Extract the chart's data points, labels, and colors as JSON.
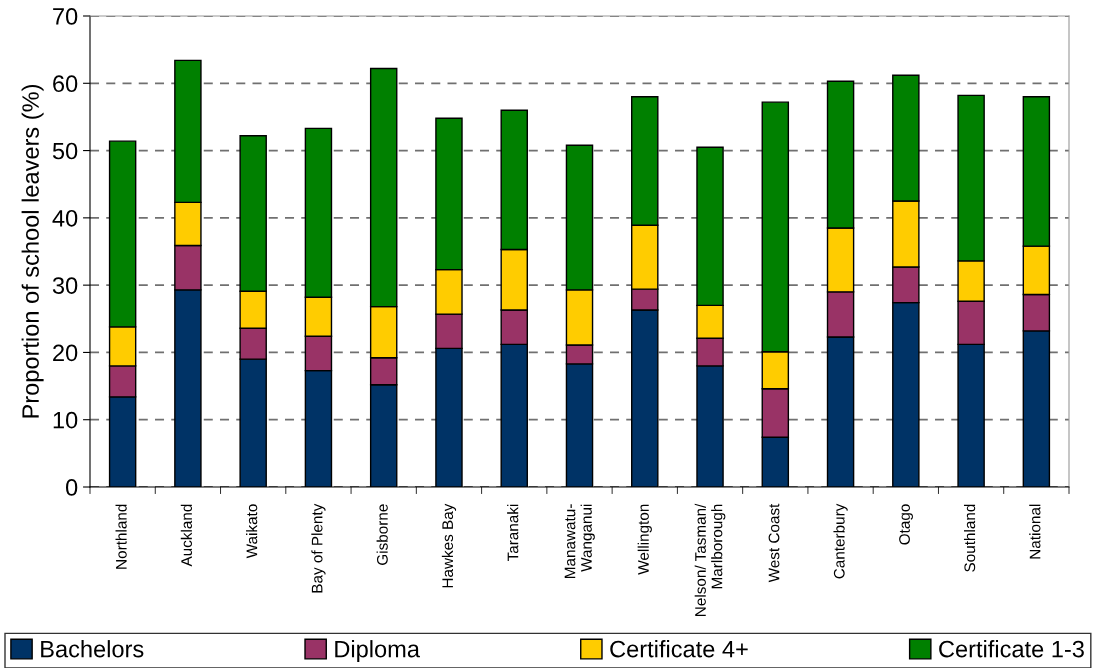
{
  "chart_data": {
    "type": "bar",
    "stacked": true,
    "ylabel": "Proportion of school leavers (%)",
    "categories": [
      "Northland",
      "Auckland",
      "Waikato",
      "Bay of Plenty",
      "Gisborne",
      "Hawkes Bay",
      "Taranaki",
      "Manawatu-\nWanganui",
      "Wellington",
      "Nelson/ Tasman/\nMarlborough",
      "West Coast",
      "Canterbury",
      "Otago",
      "Southland",
      "National"
    ],
    "series": [
      {
        "name": "Bachelors",
        "color": "#003366",
        "values": [
          13.4,
          29.3,
          19.0,
          17.3,
          15.2,
          20.6,
          21.2,
          18.3,
          26.3,
          18.0,
          7.4,
          22.3,
          27.4,
          21.2,
          23.2
        ]
      },
      {
        "name": "Diploma",
        "color": "#993366",
        "values": [
          4.6,
          6.6,
          4.6,
          5.1,
          4.0,
          5.1,
          5.1,
          2.8,
          3.1,
          4.1,
          7.2,
          6.7,
          5.3,
          6.4,
          5.4
        ]
      },
      {
        "name": "Certificate 4+",
        "color": "#ffcc00",
        "values": [
          5.8,
          6.4,
          5.5,
          5.8,
          7.6,
          6.6,
          9.0,
          8.2,
          9.5,
          4.9,
          5.5,
          9.5,
          9.8,
          6.0,
          7.2
        ]
      },
      {
        "name": "Certificate 1-3",
        "color": "#008000",
        "values": [
          27.6,
          21.1,
          23.1,
          25.1,
          35.4,
          22.5,
          20.7,
          21.5,
          19.1,
          23.5,
          37.1,
          21.8,
          18.7,
          24.6,
          22.2
        ]
      }
    ],
    "ylim": [
      0,
      70
    ],
    "yticks": [
      0,
      10,
      20,
      30,
      40,
      50,
      60,
      70
    ],
    "grid": "y",
    "legend": "bottom"
  }
}
